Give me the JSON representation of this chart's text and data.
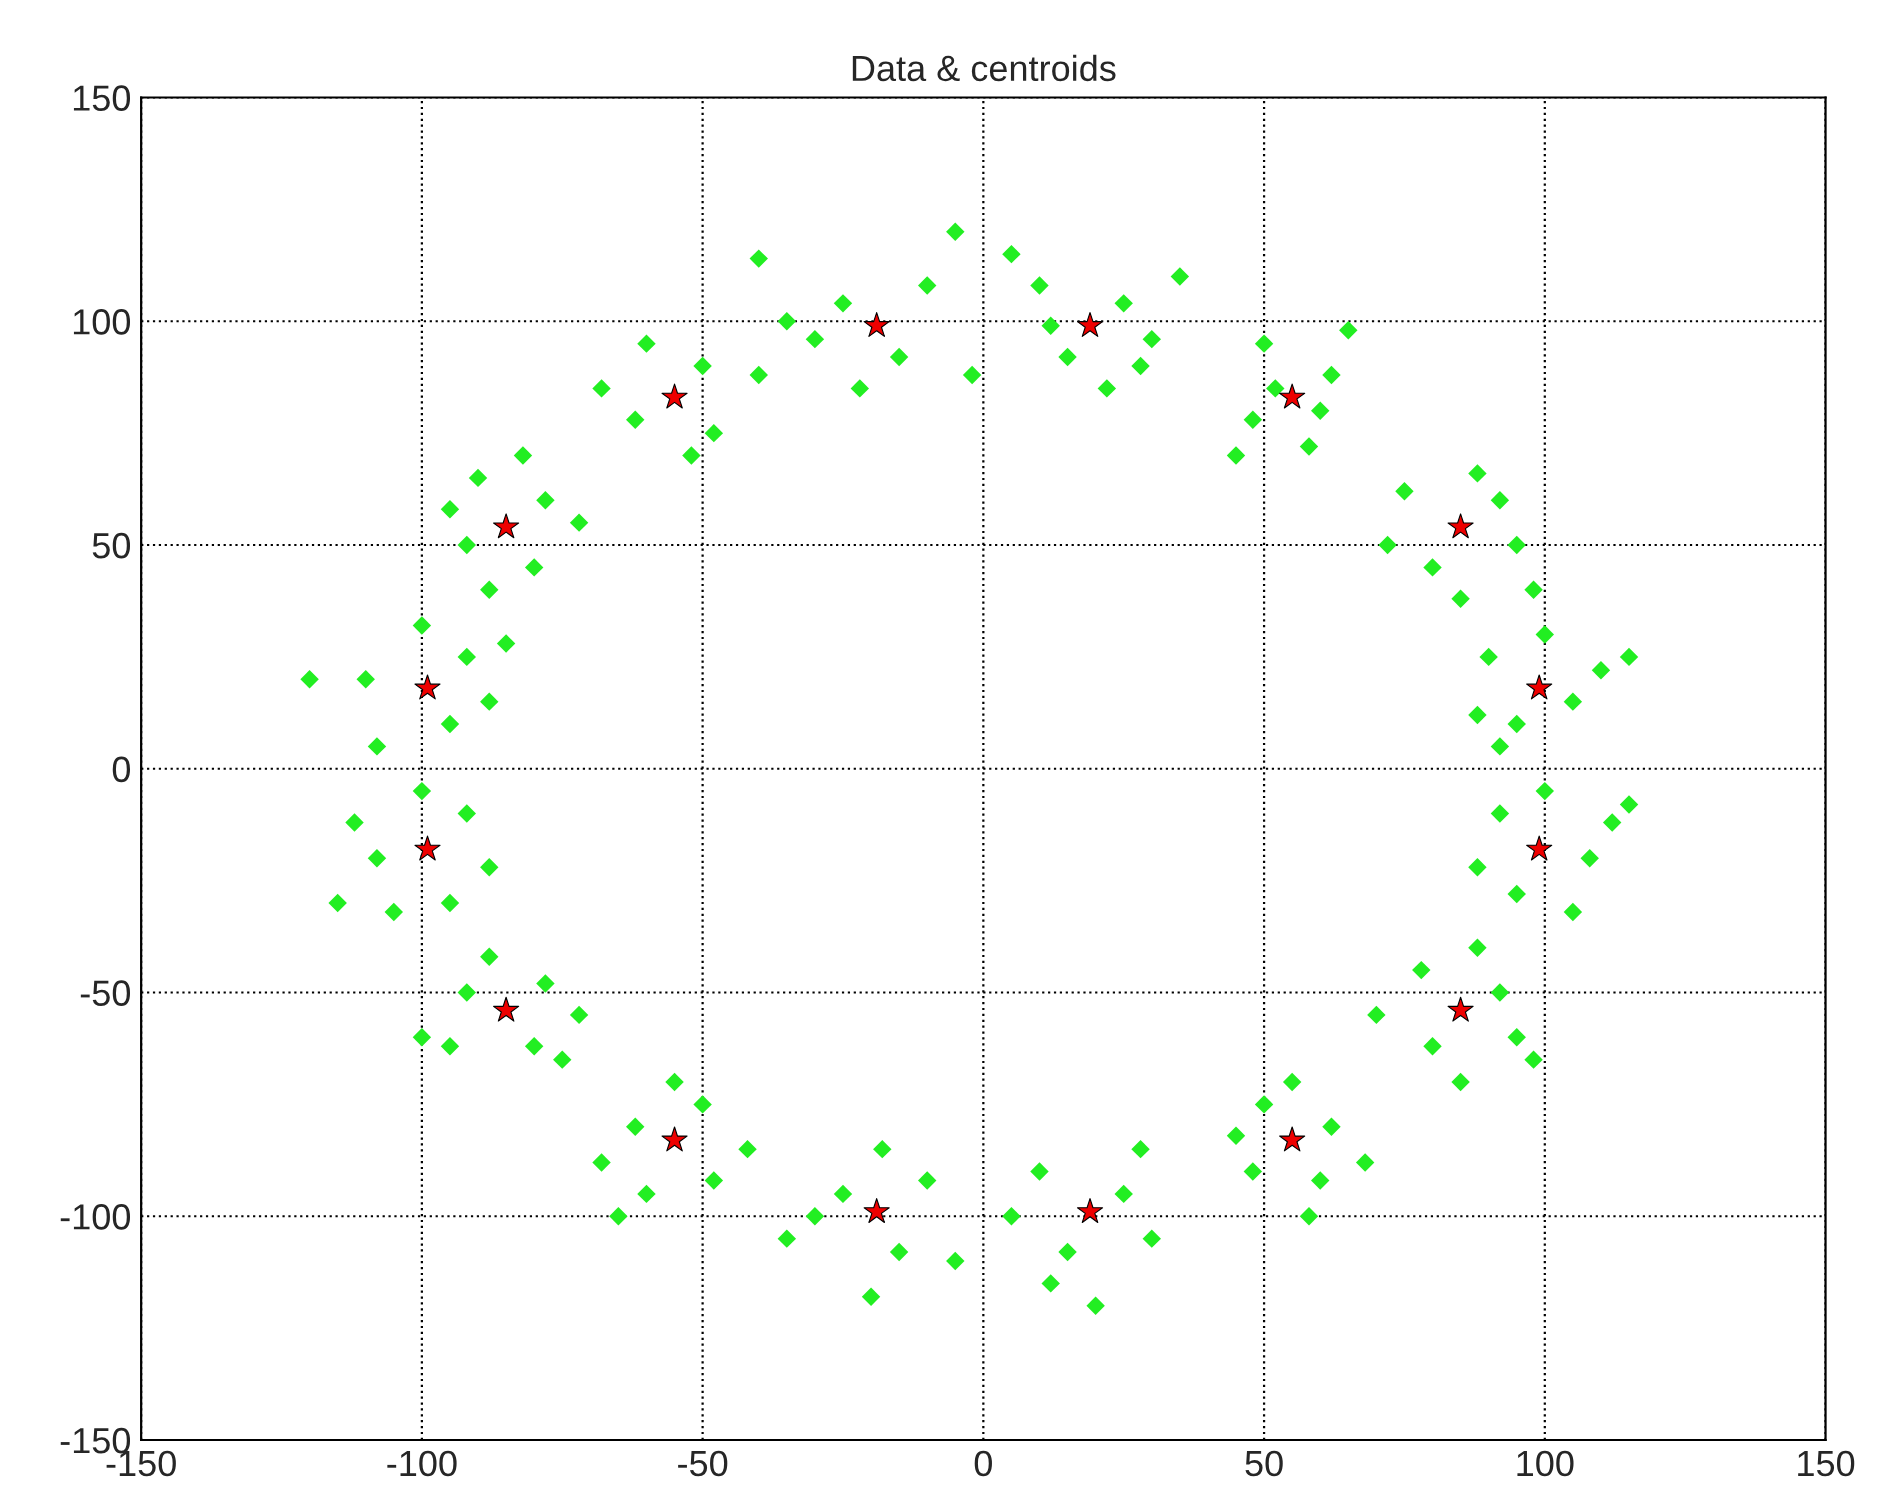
{
  "chart_data": {
    "type": "scatter",
    "title": "Data & centroids",
    "xlim": [
      -150,
      150
    ],
    "ylim": [
      -150,
      150
    ],
    "xticks": [
      -150,
      -100,
      -50,
      0,
      50,
      100,
      150
    ],
    "yticks": [
      -150,
      -100,
      -50,
      0,
      50,
      100,
      150
    ],
    "grid": true,
    "line_style": "dotted",
    "series": [
      {
        "color": "#22ee22",
        "marker": "diamond",
        "x": [
          10,
          25,
          15,
          30,
          5,
          22,
          35,
          12,
          28,
          50,
          62,
          48,
          58,
          65,
          52,
          45,
          60,
          75,
          92,
          80,
          95,
          88,
          72,
          98,
          85,
          90,
          110,
          95,
          105,
          115,
          88,
          100,
          92,
          92,
          108,
          95,
          112,
          88,
          100,
          105,
          115,
          78,
          92,
          80,
          95,
          70,
          88,
          98,
          85,
          50,
          62,
          48,
          60,
          55,
          68,
          45,
          58,
          10,
          25,
          15,
          30,
          5,
          20,
          28,
          12,
          -10,
          -25,
          -15,
          -30,
          -5,
          -20,
          -35,
          -18,
          -50,
          -62,
          -48,
          -60,
          -55,
          -68,
          -42,
          -65,
          -78,
          -92,
          -80,
          -95,
          -72,
          -88,
          -100,
          -75,
          -92,
          -108,
          -95,
          -112,
          -88,
          -100,
          -105,
          -115,
          -92,
          -110,
          -95,
          -120,
          -88,
          -100,
          -108,
          -85,
          -78,
          -92,
          -80,
          -90,
          -72,
          -88,
          -95,
          -82,
          -50,
          -62,
          -48,
          -60,
          -40,
          -68,
          -52,
          -40,
          -10,
          -25,
          -15,
          -30,
          -5,
          -22,
          -35,
          -2
        ],
        "values": [
          108,
          104,
          92,
          96,
          115,
          85,
          110,
          99,
          90,
          95,
          88,
          78,
          72,
          98,
          85,
          70,
          80,
          62,
          60,
          45,
          50,
          66,
          50,
          40,
          38,
          25,
          22,
          10,
          15,
          25,
          12,
          30,
          5,
          -10,
          -20,
          -28,
          -12,
          -22,
          -5,
          -32,
          -8,
          -45,
          -50,
          -62,
          -60,
          -55,
          -40,
          -65,
          -70,
          -75,
          -80,
          -90,
          -92,
          -70,
          -88,
          -82,
          -100,
          -90,
          -95,
          -108,
          -105,
          -100,
          -120,
          -85,
          -115,
          -92,
          -95,
          -108,
          -100,
          -110,
          -118,
          -105,
          -85,
          -75,
          -80,
          -92,
          -95,
          -70,
          -88,
          -85,
          -100,
          -48,
          -50,
          -62,
          -62,
          -55,
          -42,
          -60,
          -65,
          -10,
          -20,
          -30,
          -12,
          -22,
          -5,
          -32,
          -30,
          25,
          20,
          10,
          20,
          15,
          32,
          5,
          28,
          60,
          50,
          45,
          65,
          55,
          40,
          58,
          70,
          90,
          78,
          75,
          95,
          88,
          85,
          70,
          114,
          108,
          104,
          92,
          96,
          120,
          85,
          100,
          88
        ]
      },
      {
        "color": "#ee0000",
        "marker": "star",
        "x": [
          19,
          55,
          85,
          99,
          99,
          85,
          55,
          19,
          -19,
          -55,
          -85,
          -99,
          -99,
          -85,
          -55,
          -19
        ],
        "values": [
          99,
          83,
          54,
          18,
          -18,
          -54,
          -83,
          -99,
          -99,
          -83,
          -54,
          -18,
          18,
          54,
          83,
          99
        ]
      }
    ]
  }
}
